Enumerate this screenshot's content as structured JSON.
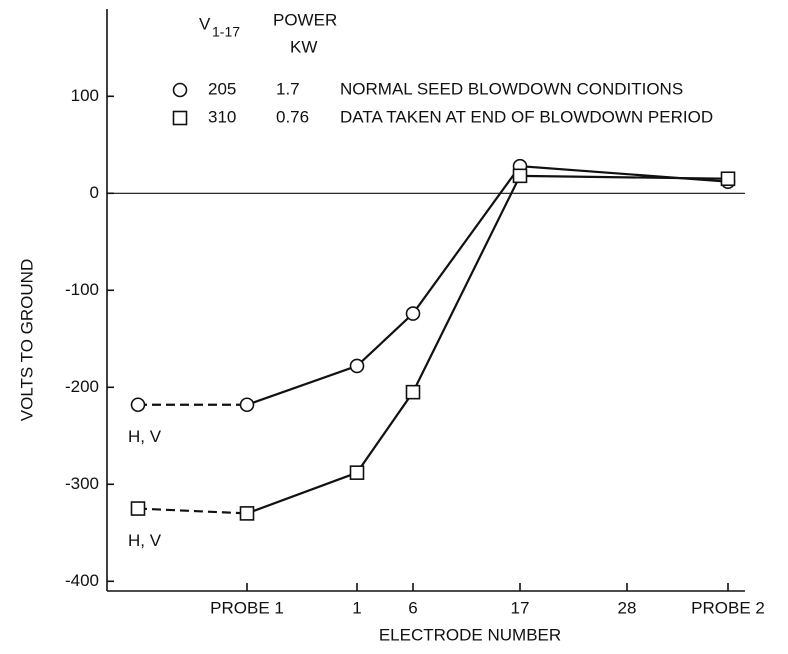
{
  "chart_data": {
    "type": "line",
    "y_label": "VOLTS TO GROUND",
    "x_label": "ELECTRODE NUMBER",
    "categories": [
      "PROBE 1",
      "1",
      "6",
      "17",
      "28",
      "PROBE 2"
    ],
    "ylim": [
      -410,
      190
    ],
    "yticks": [
      100,
      0,
      -100,
      -200,
      -300,
      -400
    ],
    "zero_line": true,
    "legend_header": {
      "voltage": "V",
      "voltage_sub": "1-17",
      "power": "POWER",
      "power_unit": "KW"
    },
    "series": [
      {
        "name": "NORMAL SEED BLOWDOWN CONDITIONS",
        "marker": "circle",
        "color": "#111",
        "voltage": 205,
        "power": 1.7,
        "x": [
          "H, V",
          "PROBE 1",
          "1",
          "6",
          "17",
          "PROBE 2"
        ],
        "values": [
          -218,
          -218,
          -178,
          -124,
          28,
          12
        ]
      },
      {
        "name": "DATA TAKEN AT END OF BLOWDOWN PERIOD",
        "marker": "square",
        "color": "#111",
        "voltage": 310,
        "power": 0.76,
        "x": [
          "H, V",
          "PROBE 1",
          "1",
          "6",
          "17",
          "PROBE 2"
        ],
        "values": [
          -325,
          -330,
          -288,
          -205,
          18,
          15
        ]
      }
    ]
  }
}
